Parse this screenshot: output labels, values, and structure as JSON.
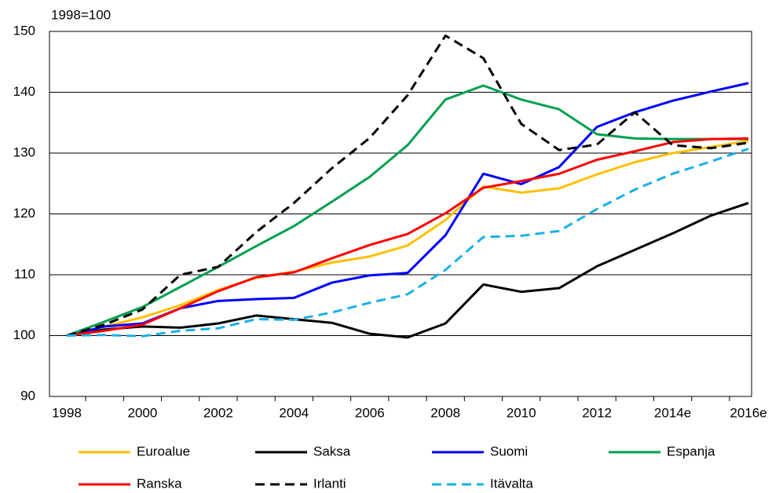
{
  "chart_data": {
    "type": "line",
    "y_label": "1998=100",
    "categories": [
      "1998",
      null,
      "2000",
      null,
      "2002",
      null,
      "2004",
      null,
      "2006",
      null,
      "2008",
      null,
      "2010",
      null,
      "2012",
      null,
      "2014e",
      null,
      "2016e"
    ],
    "ylim": [
      90,
      150
    ],
    "yticks": [
      90,
      100,
      110,
      120,
      130,
      140,
      150
    ],
    "grid": true,
    "legend": "bottom",
    "series": [
      {
        "name": "Euroalue",
        "color": "#ffc000",
        "dashed": false,
        "values": [
          100,
          101.5,
          103,
          105,
          107.5,
          109.5,
          110.5,
          112,
          113,
          114.8,
          119,
          124.5,
          123.5,
          124.2,
          126.5,
          128.5,
          130,
          131,
          132
        ]
      },
      {
        "name": "Saksa",
        "color": "#000000",
        "dashed": false,
        "values": [
          100,
          101,
          101.5,
          101.3,
          102,
          103.3,
          102.7,
          102.1,
          100.3,
          99.7,
          102,
          108.4,
          107.2,
          107.8,
          111.4,
          114.1,
          116.8,
          119.7,
          121.8
        ]
      },
      {
        "name": "Suomi",
        "color": "#0000ff",
        "dashed": false,
        "values": [
          100,
          101.5,
          102,
          104.5,
          105.7,
          106,
          106.2,
          108.7,
          109.9,
          110.3,
          116.5,
          126.6,
          124.9,
          127.7,
          134.3,
          136.7,
          138.6,
          140.1,
          141.5
        ]
      },
      {
        "name": "Espanja",
        "color": "#00a050",
        "dashed": false,
        "values": [
          100,
          102.3,
          104.7,
          108,
          111.3,
          114.7,
          118,
          122,
          126.1,
          131.3,
          138.8,
          141.1,
          138.8,
          137.2,
          133.1,
          132.4,
          132.3,
          132.3,
          132.3
        ]
      },
      {
        "name": "Ranska",
        "color": "#ff0000",
        "dashed": false,
        "values": [
          100,
          100.8,
          101.8,
          104.5,
          107.3,
          109.6,
          110.4,
          112.7,
          114.9,
          116.7,
          120.1,
          124.3,
          125.4,
          126.6,
          128.9,
          130.3,
          131.8,
          132.3,
          132.4
        ]
      },
      {
        "name": "Irlanti",
        "color": "#000000",
        "dashed": true,
        "values": [
          100,
          101.8,
          104.3,
          110,
          111.3,
          117,
          121.8,
          127.5,
          132.5,
          139.5,
          149.3,
          145.6,
          134.8,
          130.5,
          131.4,
          136.7,
          131.3,
          130.8,
          131.7
        ]
      },
      {
        "name": "Itävalta",
        "color": "#1ab0e8",
        "dashed": true,
        "values": [
          100,
          100.1,
          99.9,
          100.8,
          101.2,
          102.7,
          102.6,
          103.8,
          105.4,
          106.8,
          110.8,
          116.2,
          116.4,
          117.2,
          120.8,
          124,
          126.6,
          128.6,
          130.7
        ]
      }
    ]
  }
}
